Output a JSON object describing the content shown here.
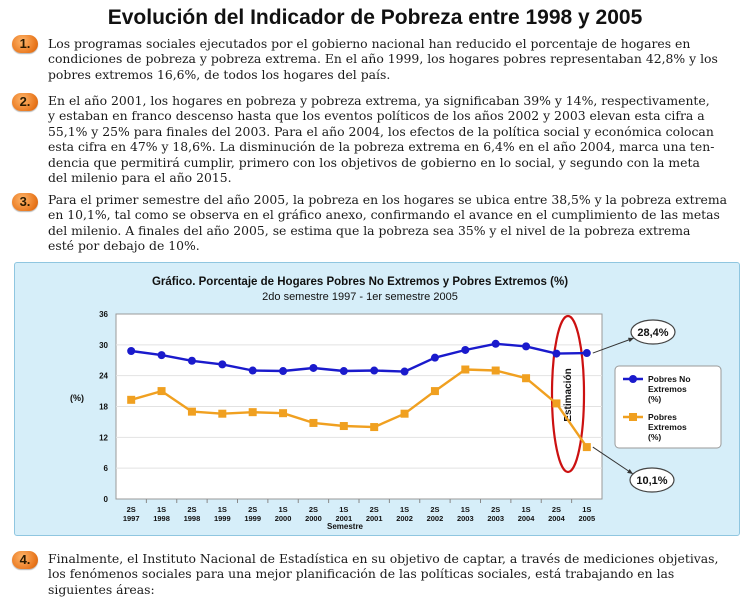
{
  "page": {
    "title": "Evolución del Indicador de Pobreza entre 1998 y 2005"
  },
  "paragraphs": [
    {
      "number": "1.",
      "lines": [
        "Los programas sociales ejecutados por el gobierno nacional han reducido el porcentaje de hogares en",
        "condiciones de pobreza y pobreza extrema. En el año 1999, los hogares pobres  representaban 42,8% y los",
        "pobres extremos 16,6%, de todos los hogares del país."
      ]
    },
    {
      "number": "2.",
      "lines": [
        "En el año 2001, los hogares en pobreza y pobreza extrema, ya significaban 39% y 14%, respectivamente,",
        "y estaban en franco descenso hasta que los eventos políticos de los años 2002 y 2003 elevan esta cifra a",
        "55,1% y 25% para finales del 2003. Para el año 2004, los efectos de la política social y económica colocan",
        "esta cifra en 47% y 18,6%. La disminución de la pobreza extrema en 6,4% en el año 2004, marca una ten-",
        "dencia que permitirá cumplir, primero con los objetivos de gobierno en lo social, y segundo con la meta",
        "del milenio para el año 2015."
      ]
    },
    {
      "number": "3.",
      "lines": [
        "Para el primer semestre del año 2005, la pobreza en los hogares se ubica entre 38,5% y la pobreza extrema",
        "en 10,1%, tal como se observa en el gráfico anexo, confirmando el avance en el cumplimiento de las metas",
        "del milenio. A finales del año 2005, se estima que la pobreza  sea 35% y el nivel de la pobreza extrema",
        "esté por debajo de 10%."
      ]
    },
    {
      "number": "4.",
      "lines": [
        "Finalmente, el Instituto Nacional de Estadística en su objetivo de captar, a través de mediciones objetivas,",
        "los fenómenos sociales para una mejor planificación de las políticas sociales, está trabajando en las",
        "siguientes áreas:"
      ]
    }
  ],
  "chart_data": {
    "type": "line",
    "title": "Gráfico. Porcentaje de Hogares Pobres No Extremos y Pobres Extremos (%)",
    "subtitle": "2do semestre 1997 - 1er semestre 2005",
    "xlabel": "Semestre",
    "ylabel": "(%)",
    "ylim": [
      0,
      36
    ],
    "yticks": [
      0,
      6,
      12,
      18,
      24,
      30,
      36
    ],
    "categories": [
      [
        "2S",
        "1997"
      ],
      [
        "1S",
        "1998"
      ],
      [
        "2S",
        "1998"
      ],
      [
        "1S",
        "1999"
      ],
      [
        "2S",
        "1999"
      ],
      [
        "1S",
        "2000"
      ],
      [
        "2S",
        "2000"
      ],
      [
        "1S",
        "2001"
      ],
      [
        "2S",
        "2001"
      ],
      [
        "1S",
        "2002"
      ],
      [
        "2S",
        "2002"
      ],
      [
        "1S",
        "2003"
      ],
      [
        "2S",
        "2003"
      ],
      [
        "1S",
        "2004"
      ],
      [
        "2S",
        "2004"
      ],
      [
        "1S",
        "2005"
      ]
    ],
    "series": [
      {
        "name": "Pobres No Extremos (%)",
        "legend_lines": [
          "Pobres No",
          "Extremos",
          "(%)"
        ],
        "color": "#1a1acc",
        "marker": "circle",
        "values": [
          28.8,
          28.0,
          26.9,
          26.2,
          25.0,
          24.9,
          25.5,
          24.9,
          25.0,
          24.8,
          27.5,
          29.0,
          30.2,
          29.7,
          28.3,
          28.4
        ],
        "callout": "28,4%"
      },
      {
        "name": "Pobres Extremos (%)",
        "legend_lines": [
          "Pobres",
          "Extremos",
          "(%)"
        ],
        "color": "#f0a020",
        "marker": "square",
        "values": [
          19.3,
          21.0,
          17.0,
          16.6,
          16.9,
          16.7,
          14.8,
          14.2,
          14.0,
          16.6,
          21.0,
          25.2,
          25.0,
          23.5,
          18.6,
          10.1
        ],
        "callout": "10,1%"
      }
    ],
    "annotation": "Estimación",
    "annotation_color": "#cc1111"
  }
}
